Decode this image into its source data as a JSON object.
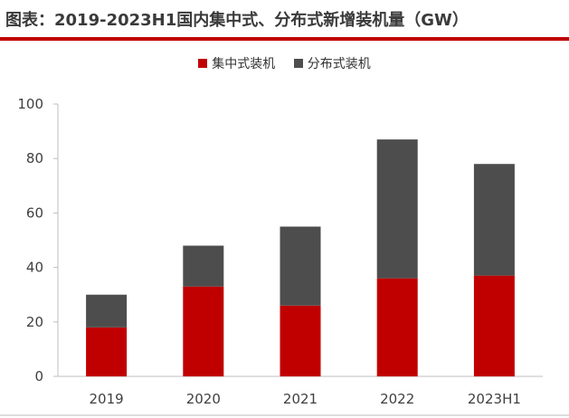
{
  "title": "图表：2019-2023H1国内集中式、分布式新增装机量（GW）",
  "chart_data": {
    "type": "bar",
    "stacked": true,
    "categories": [
      "2019",
      "2020",
      "2021",
      "2022",
      "2023H1"
    ],
    "series": [
      {
        "name": "集中式装机",
        "color": "#c00000",
        "values": [
          18,
          33,
          26,
          36,
          37
        ]
      },
      {
        "name": "分布式装机",
        "color": "#4d4d4d",
        "values": [
          12,
          15,
          29,
          51,
          41
        ]
      }
    ],
    "ylim": [
      0,
      100
    ],
    "yticks": [
      0,
      20,
      40,
      60,
      80,
      100
    ],
    "legend": "top-center",
    "grid": false
  }
}
